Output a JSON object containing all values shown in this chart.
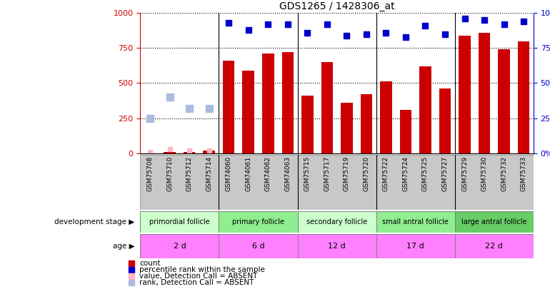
{
  "title": "GDS1265 / 1428306_at",
  "samples": [
    "GSM75708",
    "GSM75710",
    "GSM75712",
    "GSM75714",
    "GSM74060",
    "GSM74061",
    "GSM74062",
    "GSM74063",
    "GSM75715",
    "GSM75717",
    "GSM75719",
    "GSM75720",
    "GSM75722",
    "GSM75724",
    "GSM75725",
    "GSM75727",
    "GSM75729",
    "GSM75730",
    "GSM75732",
    "GSM75733"
  ],
  "count_values": [
    0,
    10,
    10,
    20,
    660,
    590,
    710,
    720,
    410,
    650,
    360,
    420,
    510,
    310,
    620,
    460,
    840,
    860,
    740,
    800
  ],
  "percentile_values": [
    null,
    null,
    null,
    null,
    930,
    880,
    920,
    920,
    860,
    920,
    840,
    850,
    860,
    830,
    910,
    850,
    960,
    950,
    920,
    940
  ],
  "absent_value": [
    10,
    30,
    20,
    20,
    null,
    null,
    null,
    null,
    null,
    null,
    null,
    null,
    null,
    null,
    null,
    null,
    null,
    null,
    null,
    null
  ],
  "absent_rank": [
    250,
    400,
    320,
    320,
    null,
    null,
    null,
    null,
    null,
    null,
    null,
    null,
    null,
    null,
    null,
    null,
    null,
    null,
    null,
    null
  ],
  "group_labels": [
    "primordial follicle",
    "primary follicle",
    "secondary follicle",
    "small antral follicle",
    "large antral follicle"
  ],
  "group_colors": [
    "#CCFFCC",
    "#90EE90",
    "#90EE90",
    "#90EE90",
    "#66DD66"
  ],
  "group_starts": [
    0,
    4,
    8,
    12,
    16
  ],
  "group_ends": [
    4,
    8,
    12,
    16,
    20
  ],
  "age_labels": [
    "2 d",
    "6 d",
    "12 d",
    "17 d",
    "22 d"
  ],
  "age_color": "#FF80FF",
  "bar_color": "#CC0000",
  "dot_color": "#0000CC",
  "absent_val_color": "#FFB6C1",
  "absent_rank_color": "#AABBDD",
  "sample_label_bg": "#C8C8C8",
  "ylim": [
    0,
    1000
  ],
  "y2lim": [
    0,
    100
  ],
  "yticks": [
    0,
    250,
    500,
    750,
    1000
  ],
  "y2ticks": [
    0,
    25,
    50,
    75,
    100
  ],
  "legend_items": [
    {
      "label": "count",
      "color": "#CC0000"
    },
    {
      "label": "percentile rank within the sample",
      "color": "#0000CC"
    },
    {
      "label": "value, Detection Call = ABSENT",
      "color": "#FFB6C1"
    },
    {
      "label": "rank, Detection Call = ABSENT",
      "color": "#AABBDD"
    }
  ]
}
